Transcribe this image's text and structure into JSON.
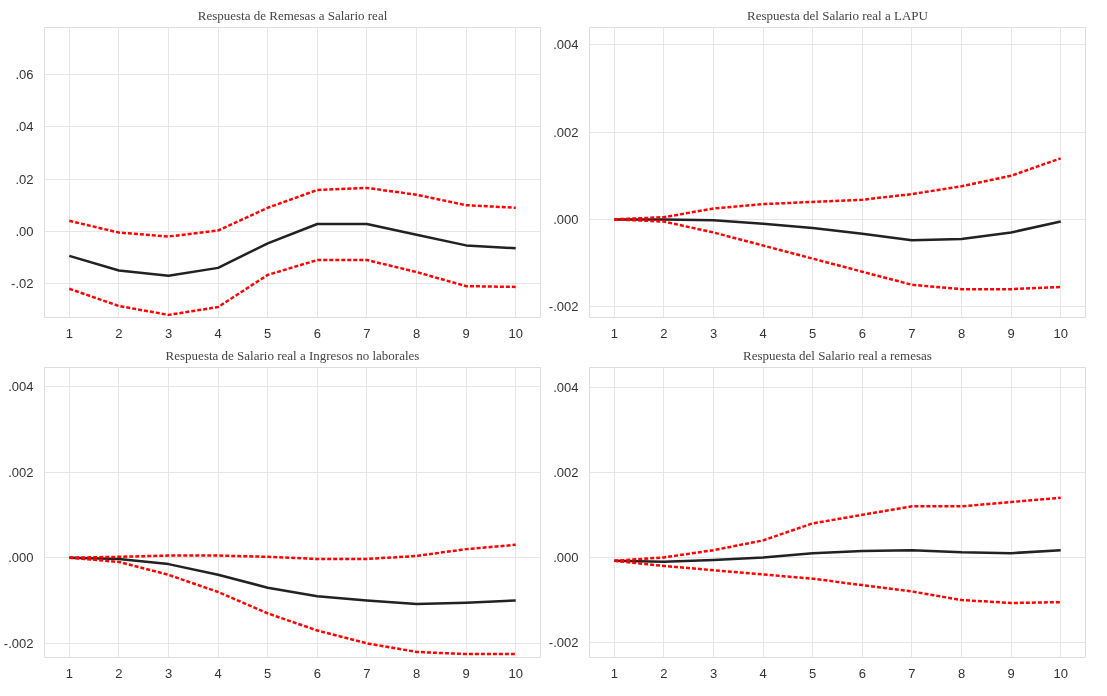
{
  "chart_data": [
    {
      "type": "line",
      "title": "Respuesta de Remesas a Salario real",
      "x": [
        1,
        2,
        3,
        4,
        5,
        6,
        7,
        8,
        9,
        10
      ],
      "xlim": [
        0.5,
        10.5
      ],
      "xticks": [
        1,
        2,
        3,
        4,
        5,
        6,
        7,
        8,
        9,
        10
      ],
      "ylim": [
        -0.033,
        0.078
      ],
      "yticks": [
        {
          "value": -0.02,
          "label": "-.02"
        },
        {
          "value": 0,
          "label": ".00"
        },
        {
          "value": 0.02,
          "label": ".02"
        },
        {
          "value": 0.04,
          "label": ".04"
        },
        {
          "value": 0.06,
          "label": ".06"
        }
      ],
      "grid": true,
      "marker": "none",
      "series": [
        {
          "color": "#222222",
          "line_style": "solid",
          "values": [
            -0.0094,
            -0.015,
            -0.017,
            -0.014,
            -0.0046,
            0.0028,
            0.0028,
            -0.0013,
            -0.0054,
            -0.0065
          ]
        },
        {
          "color": "#ff0000",
          "line_style": "dashed",
          "values": [
            0.004,
            -0.0005,
            -0.002,
            0.0003,
            0.009,
            0.0158,
            0.0166,
            0.014,
            0.01,
            0.009
          ]
        },
        {
          "color": "#ff0000",
          "line_style": "dashed",
          "values": [
            -0.022,
            -0.0286,
            -0.032,
            -0.029,
            -0.0167,
            -0.011,
            -0.011,
            -0.0156,
            -0.021,
            -0.0213
          ]
        }
      ]
    },
    {
      "type": "line",
      "title": "Respuesta del Salario real a LAPU",
      "x": [
        1,
        2,
        3,
        4,
        5,
        6,
        7,
        8,
        9,
        10
      ],
      "xlim": [
        0.5,
        10.5
      ],
      "xticks": [
        1,
        2,
        3,
        4,
        5,
        6,
        7,
        8,
        9,
        10
      ],
      "ylim": [
        -0.00225,
        0.0044
      ],
      "yticks": [
        {
          "value": -0.002,
          "label": "-.002"
        },
        {
          "value": 0,
          "label": ".000"
        },
        {
          "value": 0.002,
          "label": ".002"
        },
        {
          "value": 0.004,
          "label": ".004"
        }
      ],
      "grid": true,
      "marker": "none",
      "series": [
        {
          "color": "#222222",
          "line_style": "solid",
          "values": [
            0,
            0,
            -2e-05,
            -0.0001,
            -0.0002,
            -0.00033,
            -0.00048,
            -0.00045,
            -0.0003,
            -5e-05
          ]
        },
        {
          "color": "#ff0000",
          "line_style": "dashed",
          "values": [
            0,
            5e-05,
            0.00025,
            0.00035,
            0.0004,
            0.00045,
            0.00058,
            0.00076,
            0.001,
            0.0014
          ]
        },
        {
          "color": "#ff0000",
          "line_style": "dashed",
          "values": [
            0,
            -5e-05,
            -0.0003,
            -0.0006,
            -0.0009,
            -0.0012,
            -0.0015,
            -0.0016,
            -0.0016,
            -0.00155
          ]
        }
      ]
    },
    {
      "type": "line",
      "title": "Respuesta de Salario real a Ingresos no laborales",
      "x": [
        1,
        2,
        3,
        4,
        5,
        6,
        7,
        8,
        9,
        10
      ],
      "xlim": [
        0.5,
        10.5
      ],
      "xticks": [
        1,
        2,
        3,
        4,
        5,
        6,
        7,
        8,
        9,
        10
      ],
      "ylim": [
        -0.00233,
        0.00444
      ],
      "yticks": [
        {
          "value": -0.002,
          "label": "-.002"
        },
        {
          "value": 0,
          "label": ".000"
        },
        {
          "value": 0.002,
          "label": ".002"
        },
        {
          "value": 0.004,
          "label": ".004"
        }
      ],
      "grid": true,
      "marker": "none",
      "series": [
        {
          "color": "#222222",
          "line_style": "solid",
          "values": [
            0,
            -3e-05,
            -0.00015,
            -0.0004,
            -0.0007,
            -0.0009,
            -0.001,
            -0.00108,
            -0.00105,
            -0.001
          ]
        },
        {
          "color": "#ff0000",
          "line_style": "dashed",
          "values": [
            0,
            2e-05,
            5e-05,
            5e-05,
            2e-05,
            -3e-05,
            -3e-05,
            4e-05,
            0.0002,
            0.0003
          ]
        },
        {
          "color": "#ff0000",
          "line_style": "dashed",
          "values": [
            0,
            -0.0001,
            -0.0004,
            -0.0008,
            -0.0013,
            -0.0017,
            -0.002,
            -0.0022,
            -0.00225,
            -0.00225
          ]
        }
      ]
    },
    {
      "type": "line",
      "title": "Respuesta del Salario real a remesas",
      "x": [
        1,
        2,
        3,
        4,
        5,
        6,
        7,
        8,
        9,
        10
      ],
      "xlim": [
        0.5,
        10.5
      ],
      "xticks": [
        1,
        2,
        3,
        4,
        5,
        6,
        7,
        8,
        9,
        10
      ],
      "ylim": [
        -0.00235,
        0.00446
      ],
      "yticks": [
        {
          "value": -0.002,
          "label": "-.002"
        },
        {
          "value": 0,
          "label": ".000"
        },
        {
          "value": 0.002,
          "label": ".002"
        },
        {
          "value": 0.004,
          "label": ".004"
        }
      ],
      "grid": true,
      "marker": "none",
      "series": [
        {
          "color": "#222222",
          "line_style": "solid",
          "values": [
            -8e-05,
            -0.0001,
            -6e-05,
            0,
            0.0001,
            0.00015,
            0.00017,
            0.00012,
            0.0001,
            0.00017
          ]
        },
        {
          "color": "#ff0000",
          "line_style": "dashed",
          "values": [
            -8e-05,
            0,
            0.00017,
            0.0004,
            0.0008,
            0.001,
            0.0012,
            0.0012,
            0.0013,
            0.0014
          ]
        },
        {
          "color": "#ff0000",
          "line_style": "dashed",
          "values": [
            -8e-05,
            -0.0002,
            -0.0003,
            -0.0004,
            -0.0005,
            -0.00065,
            -0.0008,
            -0.001,
            -0.00107,
            -0.00105
          ]
        }
      ]
    }
  ]
}
